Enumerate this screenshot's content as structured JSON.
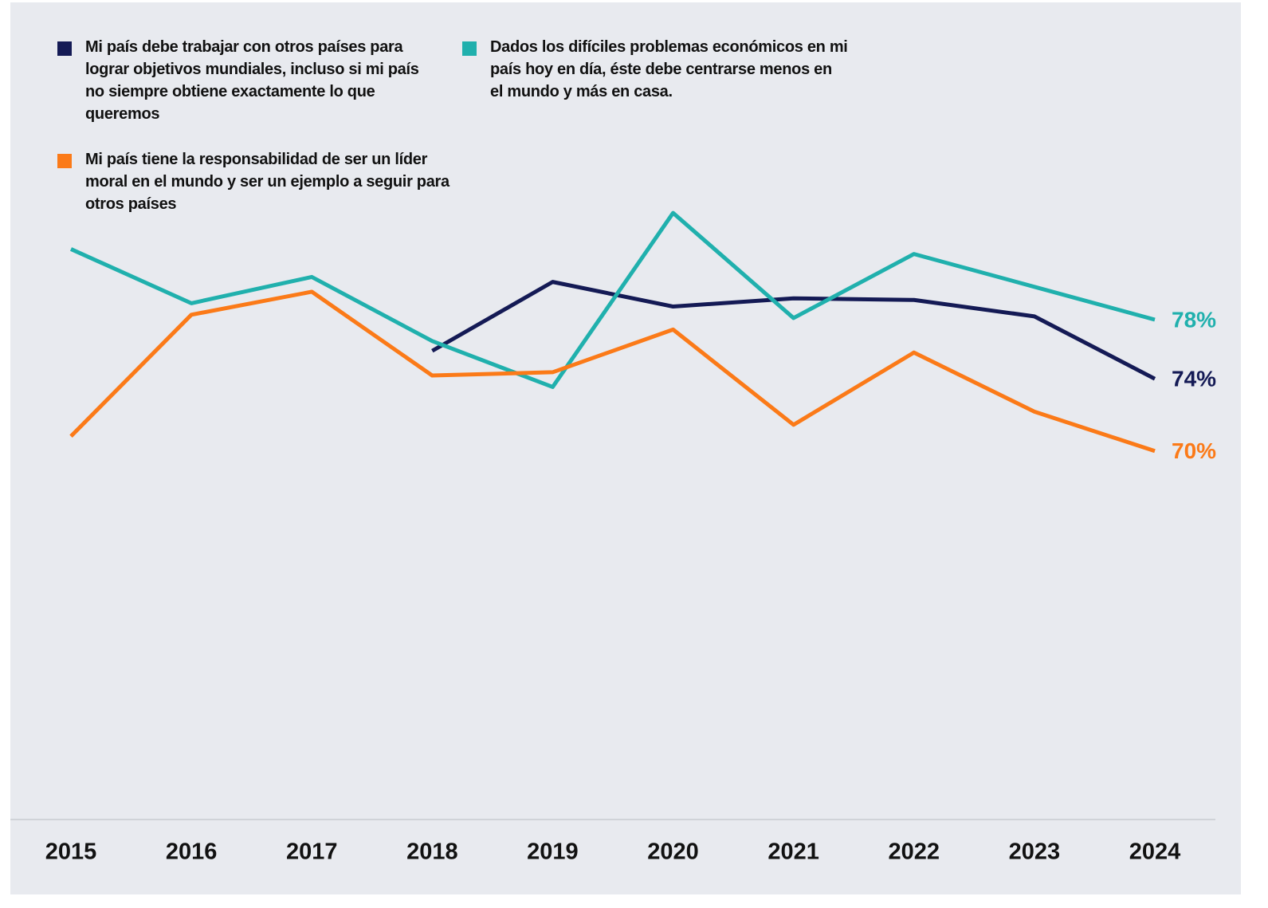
{
  "chart_data": {
    "type": "line",
    "categories": [
      "2015",
      "2016",
      "2017",
      "2018",
      "2019",
      "2020",
      "2021",
      "2022",
      "2023",
      "2024"
    ],
    "series": [
      {
        "name": "Mi país debe trabajar con otros países para lograr objetivos mundiales, incluso si mi país no siempre obtiene exactamente lo que queremos",
        "color": "#141a55",
        "values": [
          null,
          null,
          null,
          76.1,
          80.3,
          78.8,
          79.3,
          79.2,
          78.2,
          74.4
        ],
        "value_labels": [
          null,
          null,
          null,
          null,
          null,
          null,
          null,
          null,
          null,
          "74%"
        ]
      },
      {
        "name": "Dados los difíciles problemas económicos en mi país hoy en día, éste debe centrarse menos en el mundo y más en casa.",
        "color": "#20b0ad",
        "values": [
          82.3,
          79.0,
          80.6,
          76.7,
          73.9,
          84.5,
          78.1,
          82.0,
          80.0,
          78
        ],
        "value_labels": [
          null,
          null,
          null,
          null,
          null,
          null,
          null,
          null,
          null,
          "78%"
        ]
      },
      {
        "name": "Mi país tiene la responsabilidad de ser un líder moral en el mundo y ser un ejemplo a seguir para otros países",
        "color": "#fb7a18",
        "values": [
          70.9,
          78.3,
          79.7,
          74.6,
          74.8,
          77.4,
          71.6,
          76.0,
          72.4,
          70
        ],
        "value_labels": [
          null,
          null,
          null,
          null,
          null,
          null,
          null,
          null,
          null,
          "70%"
        ]
      }
    ],
    "ylim": [
      48,
      96
    ]
  }
}
